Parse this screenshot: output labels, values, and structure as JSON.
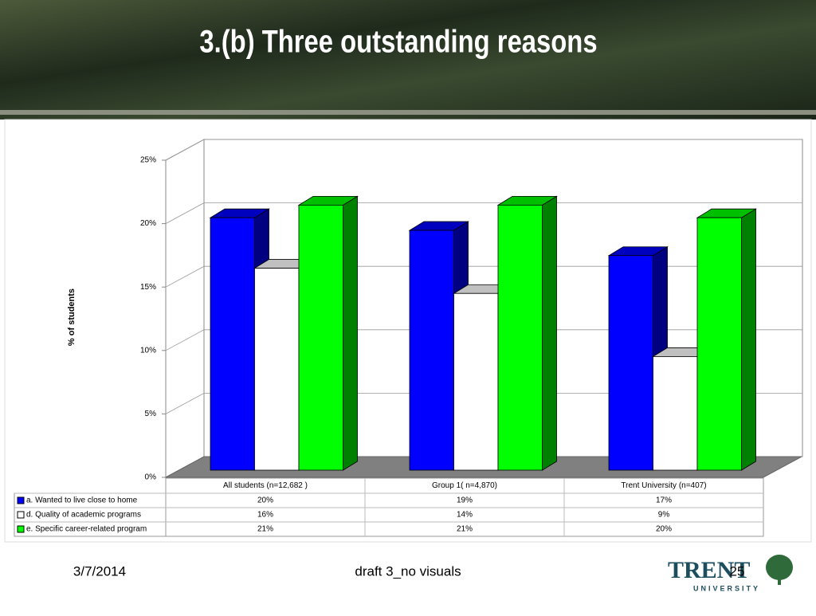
{
  "chart_data": {
    "type": "bar3d",
    "title": "3.(b) Three outstanding reasons",
    "y_label": "% of students",
    "categories": [
      "All students (n=12,682 )",
      "Group 1( n=4,870)",
      "Trent University (n=407)"
    ],
    "series": [
      {
        "name": "a. Wanted to live close to home",
        "color": "#0000ff",
        "values": [
          20,
          19,
          17
        ],
        "value_labels": [
          "20%",
          "19%",
          "17%"
        ]
      },
      {
        "name": "d. Quality of academic programs",
        "color": "#ffffff",
        "values": [
          16,
          14,
          9
        ],
        "value_labels": [
          "16%",
          "14%",
          "9%"
        ]
      },
      {
        "name": "e. Specific career-related program",
        "color": "#00ff00",
        "values": [
          21,
          21,
          20
        ],
        "value_labels": [
          "21%",
          "21%",
          "20%"
        ]
      }
    ],
    "ylim": [
      0,
      25
    ],
    "yticks": [
      {
        "value": 0,
        "label": "0%"
      },
      {
        "value": 5,
        "label": "5%"
      },
      {
        "value": 10,
        "label": "10%"
      },
      {
        "value": 15,
        "label": "15%"
      },
      {
        "value": 20,
        "label": "20%"
      },
      {
        "value": 25,
        "label": "25%"
      }
    ],
    "grid": true
  },
  "footer": {
    "date": "3/7/2014",
    "note": "draft 3_no visuals",
    "page": "25"
  },
  "logo": {
    "name": "TRENT",
    "subtitle": "UNIVERSITY"
  }
}
